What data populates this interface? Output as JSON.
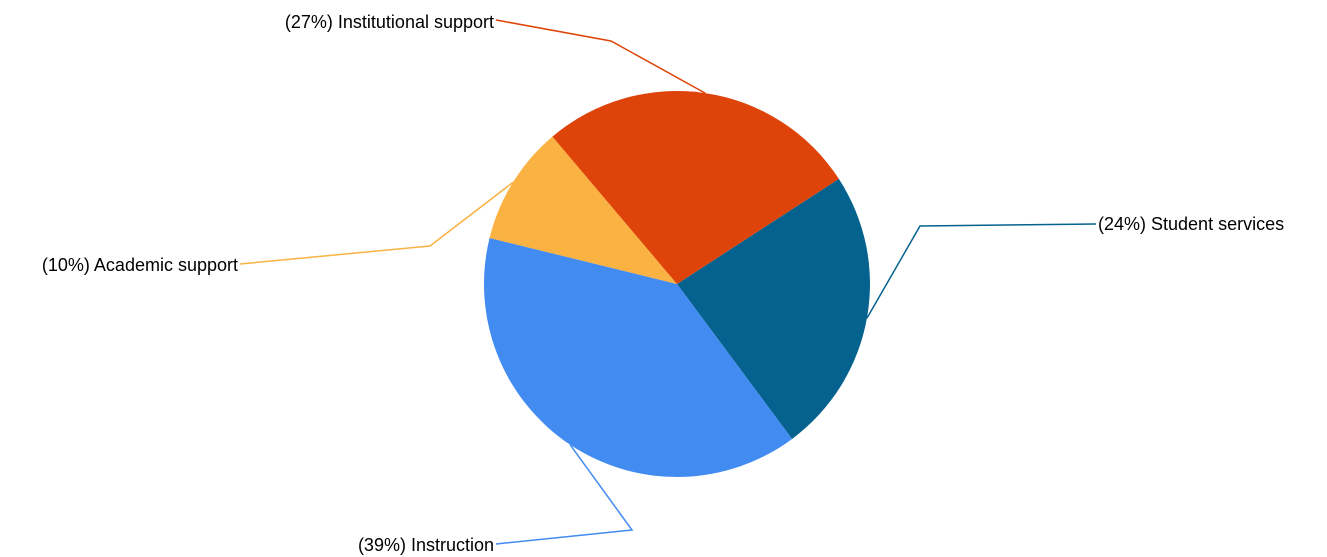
{
  "chart_data": {
    "type": "pie",
    "title": "",
    "slices": [
      {
        "category": "Student services",
        "label": "(24%) Student services",
        "value": 24,
        "color": "#05628F"
      },
      {
        "category": "Instruction",
        "label": "(39%) Instruction",
        "value": 39,
        "color": "#428BF0"
      },
      {
        "category": "Academic support",
        "label": "(10%) Academic support",
        "value": 10,
        "color": "#FAB243"
      },
      {
        "category": "Institutional support",
        "label": "(27%) Institutional support",
        "value": 27,
        "color": "#DE430A"
      }
    ],
    "start_angle_deg": 57,
    "direction": "clockwise",
    "legend": "none",
    "labels": "outside-with-leader-lines"
  }
}
